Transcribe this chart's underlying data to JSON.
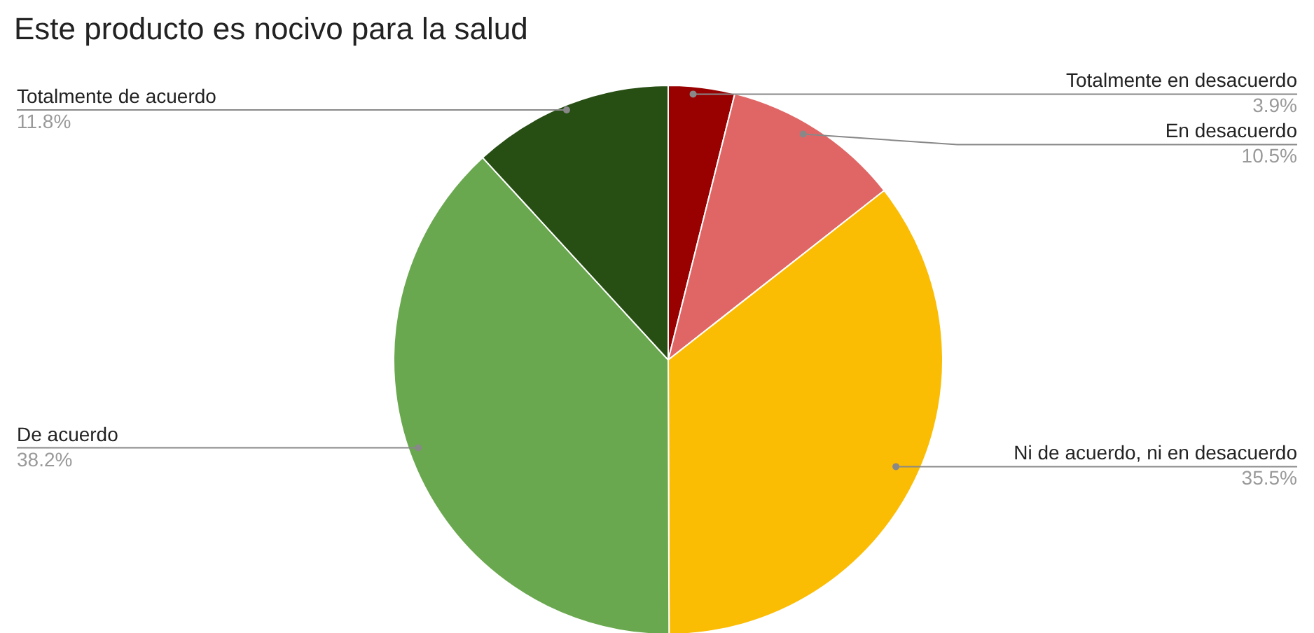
{
  "chart_data": {
    "type": "pie",
    "title": "Este producto es nocivo para la salud",
    "categories": [
      "Totalmente en desacuerdo",
      "En desacuerdo",
      "Ni de acuerdo, ni en desacuerdo",
      "De acuerdo",
      "Totalmente de acuerdo"
    ],
    "values": [
      3.9,
      10.5,
      35.5,
      38.2,
      11.8
    ],
    "value_labels": [
      "3.9%",
      "10.5%",
      "35.5%",
      "38.2%",
      "11.8%"
    ],
    "colors": [
      "#990000",
      "#e06666",
      "#fbbc04",
      "#6aa84f",
      "#274e13"
    ]
  }
}
